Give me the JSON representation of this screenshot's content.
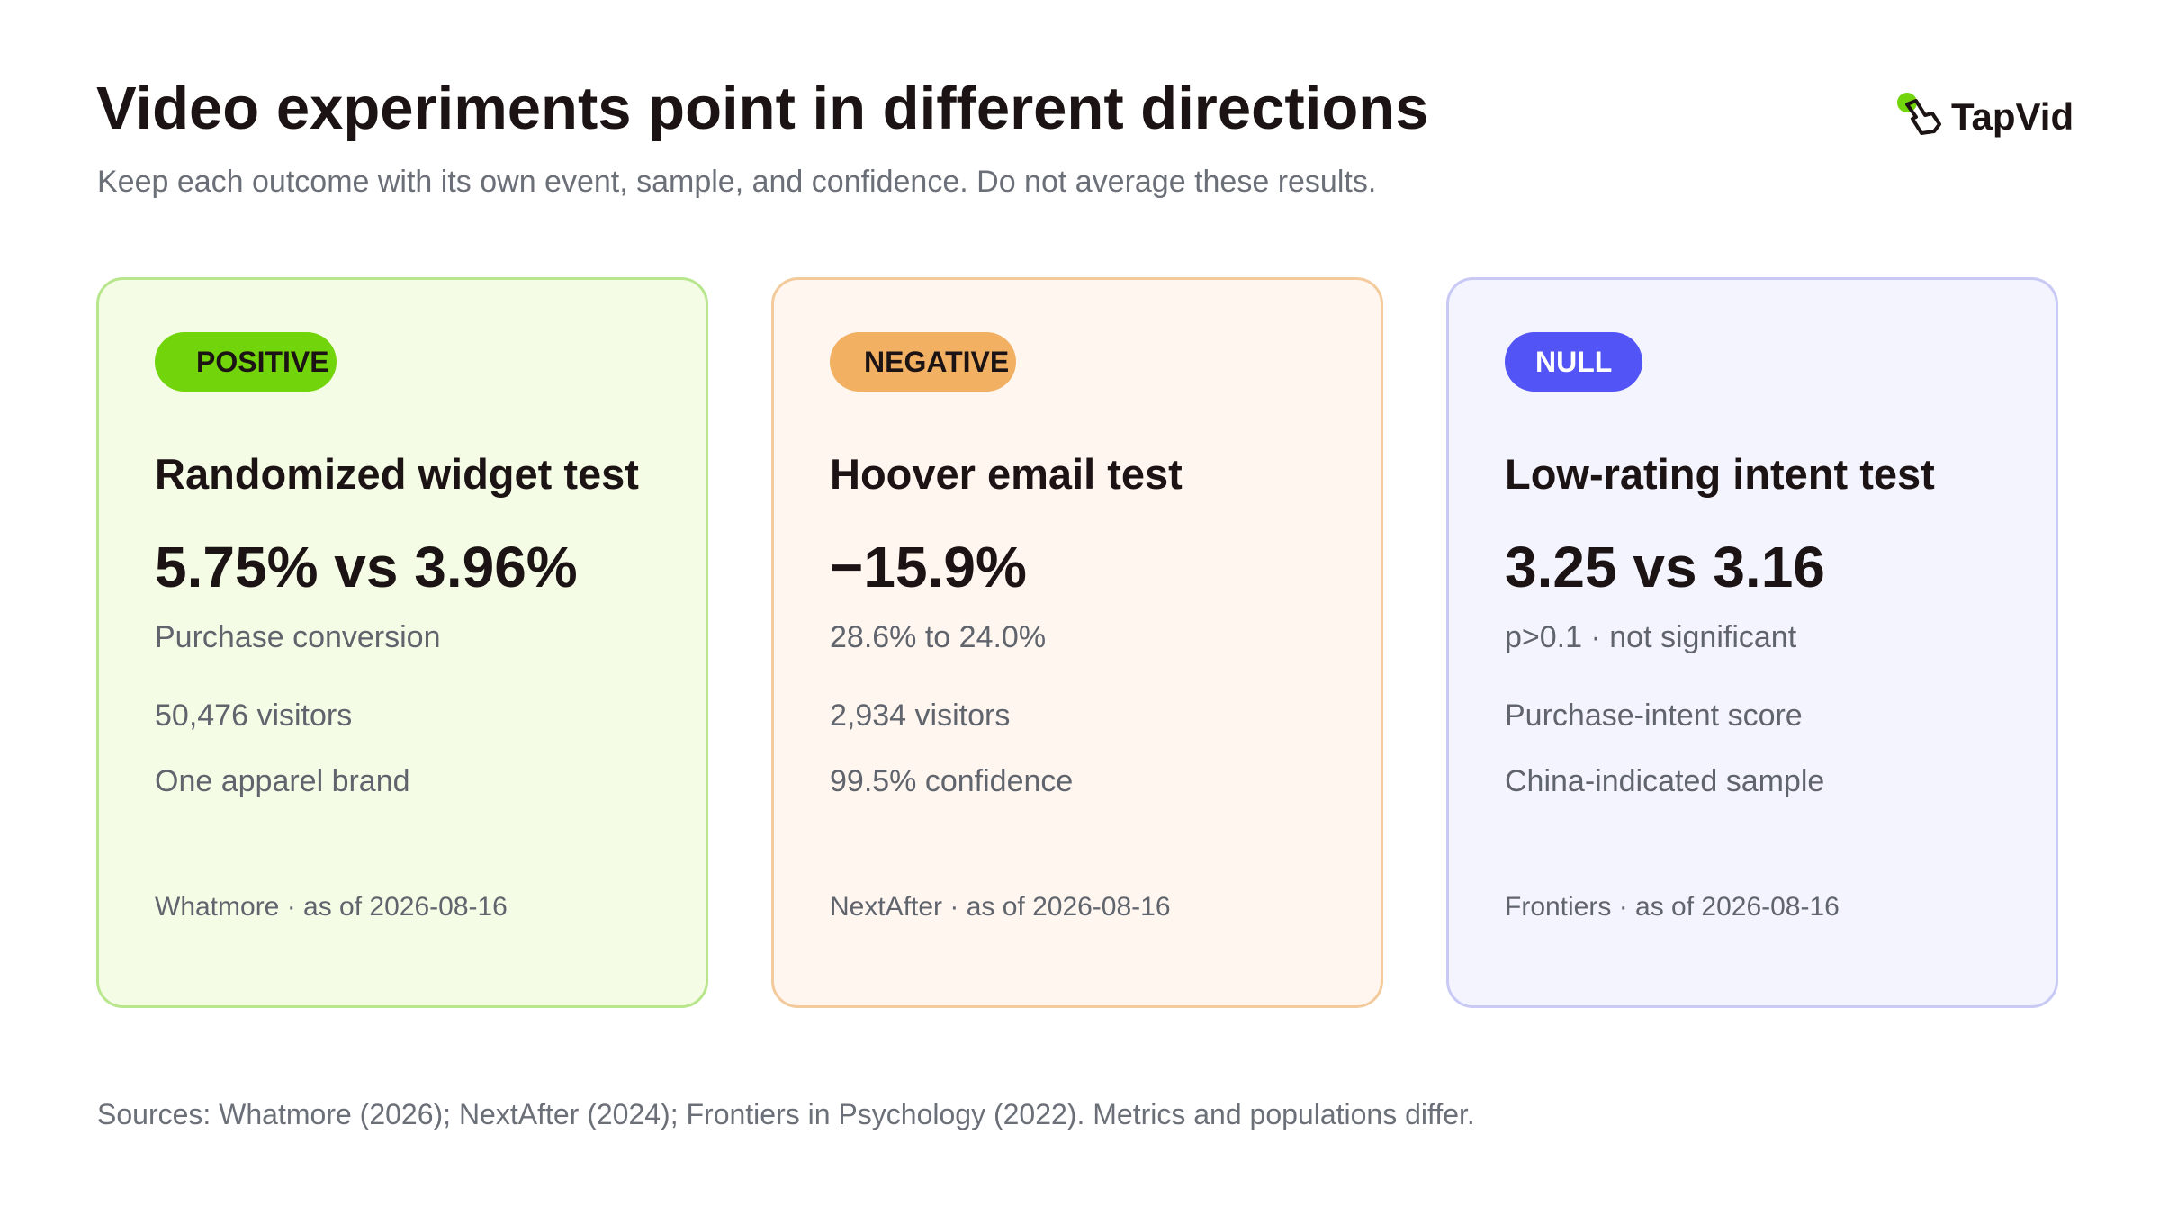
{
  "header": {
    "title": "Video experiments point in different directions",
    "subtitle": "Keep each outcome with its own event, sample, and confidence. Do not average these results."
  },
  "logo": {
    "text": "TapVid"
  },
  "cards": [
    {
      "badge": "POSITIVE",
      "title": "Randomized widget test",
      "value": "5.75% vs 3.96%",
      "details": [
        "Purchase conversion",
        "50,476 visitors",
        "One apparel brand"
      ],
      "source": "Whatmore · as of 2026-08-16"
    },
    {
      "badge": "NEGATIVE",
      "title": "Hoover email test",
      "value": "−15.9%",
      "details": [
        "28.6% to 24.0%",
        "2,934 visitors",
        "99.5% confidence"
      ],
      "source": "NextAfter · as of 2026-08-16"
    },
    {
      "badge": "NULL",
      "title": "Low-rating intent test",
      "value": "3.25 vs 3.16",
      "details": [
        "p>0.1 · not significant",
        "Purchase-intent score",
        "China-indicated sample"
      ],
      "source": "Frontiers · as of 2026-08-16"
    }
  ],
  "footer": {
    "text": "Sources: Whatmore (2026); NextAfter (2024); Frontiers in Psychology (2022). Metrics and populations differ."
  }
}
